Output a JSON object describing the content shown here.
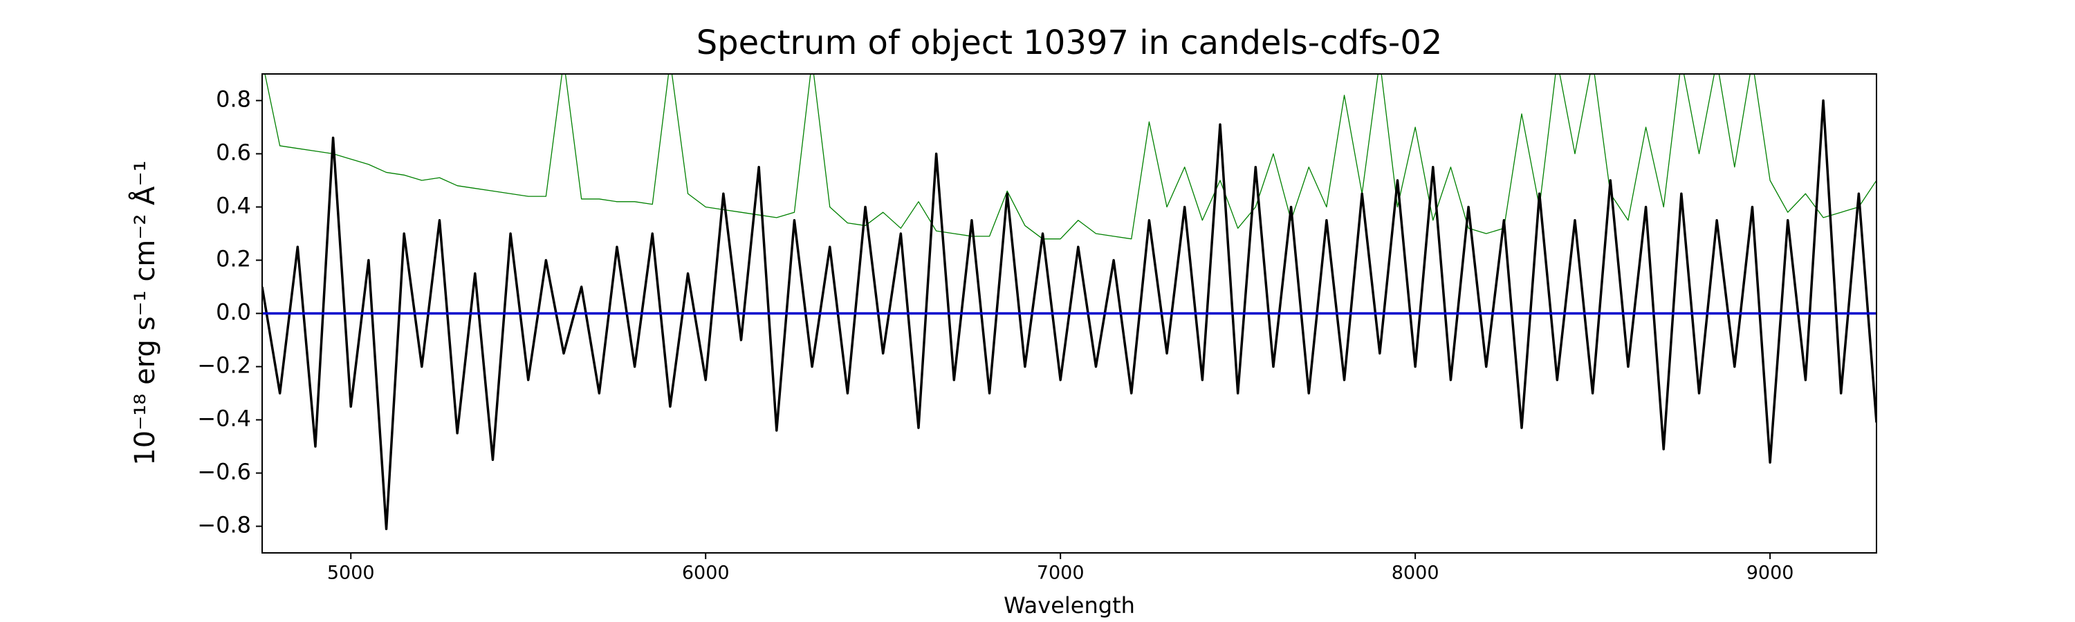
{
  "chart_data": {
    "type": "line",
    "title": "Spectrum of object 10397 in candels-cdfs-02",
    "xlabel": "Wavelength",
    "ylabel": "10⁻¹⁸ erg s⁻¹ cm⁻² Å⁻¹",
    "xlim": [
      4750,
      9300
    ],
    "ylim": [
      -0.9,
      0.9
    ],
    "xticks": [
      5000,
      6000,
      7000,
      8000,
      9000
    ],
    "yticks": [
      {
        "value": -0.8,
        "label": "−0.8"
      },
      {
        "value": -0.6,
        "label": "−0.6"
      },
      {
        "value": -0.4,
        "label": "−0.4"
      },
      {
        "value": -0.2,
        "label": "−0.2"
      },
      {
        "value": 0,
        "label": "0.0"
      },
      {
        "value": 0.2,
        "label": "0.2"
      },
      {
        "value": 0.4,
        "label": "0.4"
      },
      {
        "value": 0.6,
        "label": "0.6"
      },
      {
        "value": 0.8,
        "label": "0.8"
      }
    ],
    "grid": false,
    "x": [
      4750,
      4800,
      4850,
      4900,
      4950,
      5000,
      5050,
      5100,
      5150,
      5200,
      5250,
      5300,
      5350,
      5400,
      5450,
      5500,
      5550,
      5600,
      5650,
      5700,
      5750,
      5800,
      5850,
      5900,
      5950,
      6000,
      6050,
      6100,
      6150,
      6200,
      6250,
      6300,
      6350,
      6400,
      6450,
      6500,
      6550,
      6600,
      6650,
      6700,
      6750,
      6800,
      6850,
      6900,
      6950,
      7000,
      7050,
      7100,
      7150,
      7200,
      7250,
      7300,
      7350,
      7400,
      7450,
      7500,
      7550,
      7600,
      7650,
      7700,
      7750,
      7800,
      7850,
      7900,
      7950,
      8000,
      8050,
      8100,
      8150,
      8200,
      8250,
      8300,
      8350,
      8400,
      8450,
      8500,
      8550,
      8600,
      8650,
      8700,
      8750,
      8800,
      8850,
      8900,
      8950,
      9000,
      9050,
      9100,
      9150,
      9200,
      9250,
      9300
    ],
    "series": [
      {
        "color": "#008000",
        "width": 1.3,
        "values": [
          0.95,
          0.63,
          0.62,
          0.61,
          0.6,
          0.58,
          0.56,
          0.53,
          0.52,
          0.5,
          0.51,
          0.48,
          0.47,
          0.46,
          0.45,
          0.44,
          0.44,
          0.95,
          0.43,
          0.43,
          0.42,
          0.42,
          0.41,
          0.95,
          0.45,
          0.4,
          0.39,
          0.38,
          0.37,
          0.36,
          0.38,
          0.95,
          0.4,
          0.34,
          0.33,
          0.38,
          0.32,
          0.42,
          0.31,
          0.3,
          0.29,
          0.29,
          0.46,
          0.33,
          0.28,
          0.28,
          0.35,
          0.3,
          0.29,
          0.28,
          0.72,
          0.4,
          0.55,
          0.35,
          0.5,
          0.32,
          0.4,
          0.6,
          0.35,
          0.55,
          0.4,
          0.82,
          0.45,
          0.95,
          0.4,
          0.7,
          0.35,
          0.55,
          0.32,
          0.3,
          0.32,
          0.75,
          0.4,
          0.95,
          0.6,
          0.95,
          0.45,
          0.35,
          0.7,
          0.4,
          0.95,
          0.6,
          0.95,
          0.55,
          0.95,
          0.5,
          0.38,
          0.45,
          0.36,
          0.38,
          0.4,
          0.5
        ]
      },
      {
        "color": "#000000",
        "width": 3.5,
        "values": [
          0.1,
          -0.3,
          0.25,
          -0.5,
          0.66,
          -0.35,
          0.2,
          -0.81,
          0.3,
          -0.2,
          0.35,
          -0.45,
          0.15,
          -0.55,
          0.3,
          -0.25,
          0.2,
          -0.15,
          0.1,
          -0.3,
          0.25,
          -0.2,
          0.3,
          -0.35,
          0.15,
          -0.25,
          0.45,
          -0.1,
          0.55,
          -0.44,
          0.35,
          -0.2,
          0.25,
          -0.3,
          0.4,
          -0.15,
          0.3,
          -0.43,
          0.6,
          -0.25,
          0.35,
          -0.3,
          0.45,
          -0.2,
          0.3,
          -0.25,
          0.25,
          -0.2,
          0.2,
          -0.3,
          0.35,
          -0.15,
          0.4,
          -0.25,
          0.71,
          -0.3,
          0.55,
          -0.2,
          0.4,
          -0.3,
          0.35,
          -0.25,
          0.45,
          -0.15,
          0.5,
          -0.2,
          0.55,
          -0.25,
          0.4,
          -0.2,
          0.35,
          -0.43,
          0.45,
          -0.25,
          0.35,
          -0.3,
          0.5,
          -0.2,
          0.4,
          -0.51,
          0.45,
          -0.3,
          0.35,
          -0.2,
          0.4,
          -0.56,
          0.35,
          -0.25,
          0.8,
          -0.3,
          0.45,
          -0.41
        ]
      },
      {
        "color": "#0000cc",
        "width": 3.5,
        "values": [
          0,
          0,
          0,
          0,
          0,
          0,
          0,
          0,
          0,
          0,
          0,
          0,
          0,
          0,
          0,
          0,
          0,
          0,
          0,
          0,
          0,
          0,
          0,
          0,
          0,
          0,
          0,
          0,
          0,
          0,
          0,
          0,
          0,
          0,
          0,
          0,
          0,
          0,
          0,
          0,
          0,
          0,
          0,
          0,
          0,
          0,
          0,
          0,
          0,
          0,
          0,
          0,
          0,
          0,
          0,
          0,
          0,
          0,
          0,
          0,
          0,
          0,
          0,
          0,
          0,
          0,
          0,
          0,
          0,
          0,
          0,
          0,
          0,
          0,
          0,
          0,
          0,
          0,
          0,
          0,
          0,
          0,
          0,
          0,
          0,
          0,
          0,
          0,
          0,
          0,
          0,
          0
        ]
      }
    ]
  }
}
